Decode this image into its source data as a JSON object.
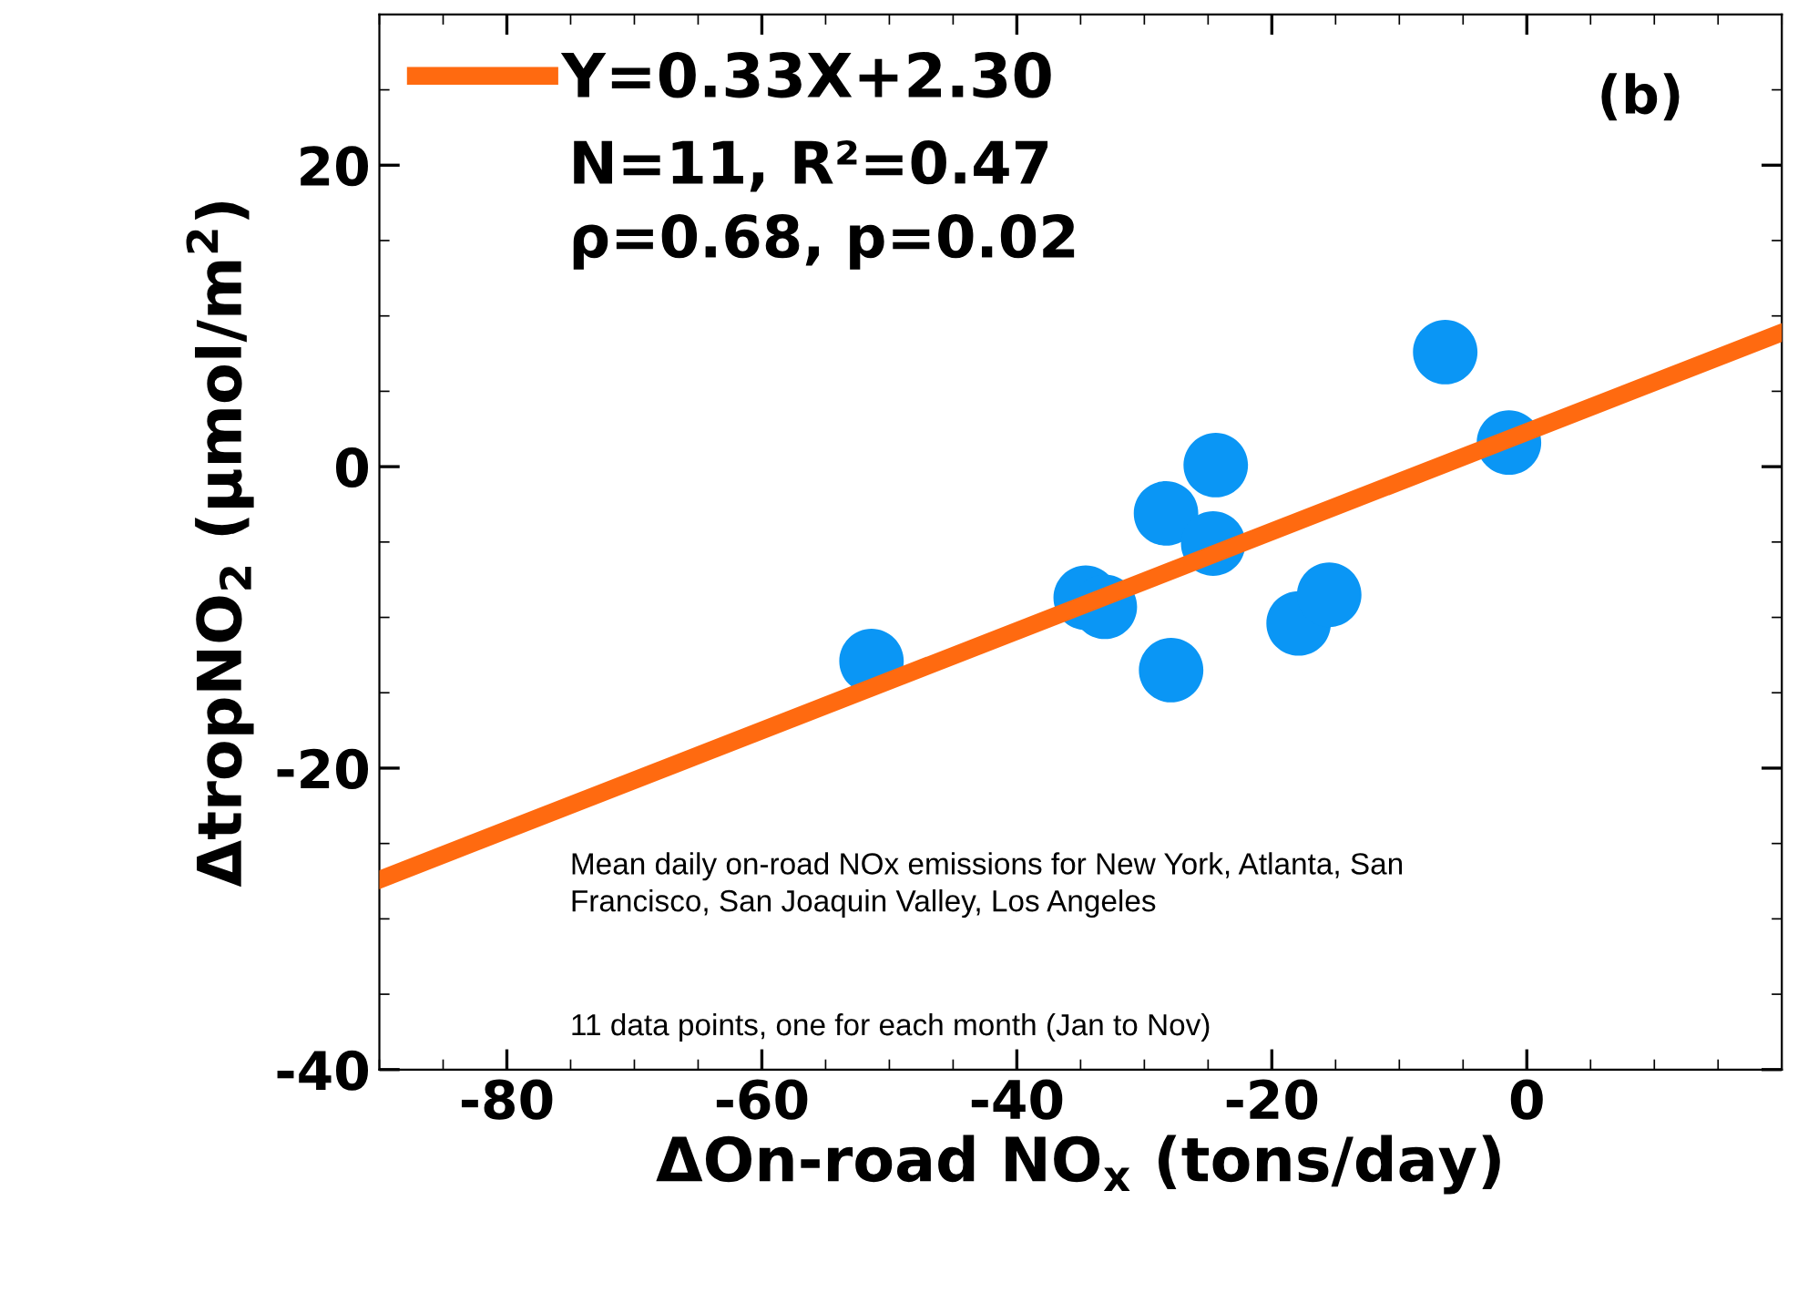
{
  "chart_data": {
    "type": "scatter",
    "xlabel": "ΔOn-road NO$_{x}$ (tons/day)",
    "ylabel": "ΔtropNO$_{2}$ (μmol/m$^{2}$)",
    "series": [
      {
        "marker": "circle",
        "color": "#0a96f5",
        "x": [
          -51.4,
          -34.6,
          -33.1,
          -28.3,
          -24.4,
          -24.6,
          -27.9,
          -17.9,
          -15.5,
          -6.4,
          -1.4
        ],
        "values": [
          -12.9,
          -8.7,
          -9.3,
          -3.1,
          0.1,
          -5.1,
          -13.5,
          -10.4,
          -8.5,
          7.6,
          1.6
        ]
      },
      {
        "type": "line",
        "name": "Y=0.33X+2.30",
        "color": "#ff6a10",
        "x": [
          -90,
          20
        ],
        "values": [
          -27.4,
          8.9
        ]
      }
    ],
    "xlim": [
      -90,
      20
    ],
    "ylim": [
      -40,
      30
    ],
    "xticks": [
      -80,
      -60,
      -40,
      -20,
      0
    ],
    "yticks": [
      -40,
      -20,
      0,
      20
    ],
    "legend": "top left",
    "grid": false,
    "annotations": [
      "N=11, R²=0.47",
      "ρ=0.68, p=0.02",
      "(b)",
      "Mean daily on-road NOx emissions for New York, Atlanta, San\nFrancisco, San Joaquin Valley, Los Angeles",
      "11 data points, one for each month (Jan to Nov)"
    ]
  }
}
